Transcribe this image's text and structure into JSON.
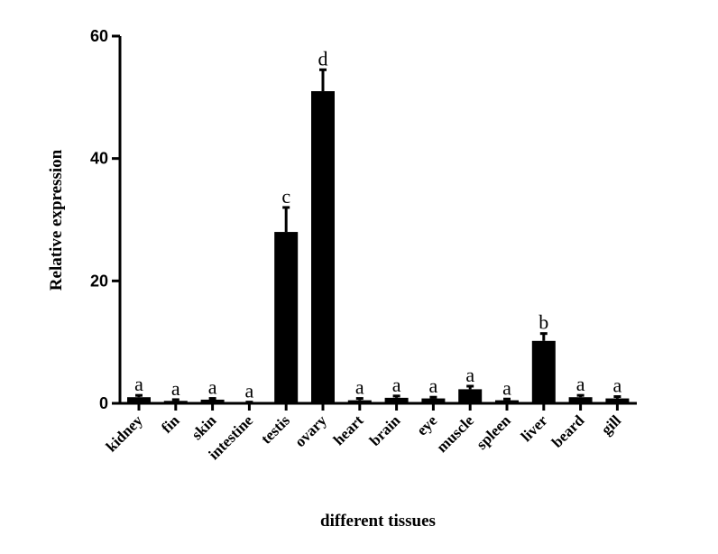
{
  "chart_data": {
    "type": "bar",
    "xlabel": "different tissues",
    "ylabel": "Relative expression",
    "ylim": [
      0,
      60
    ],
    "yticks": [
      "0",
      "20",
      "40",
      "60"
    ],
    "categories": [
      "kidney",
      "fin",
      "skin",
      "intestine",
      "testis",
      "ovary",
      "heart",
      "brain",
      "eye",
      "muscle",
      "spleen",
      "liver",
      "beard",
      "gill"
    ],
    "values": [
      1.0,
      0.4,
      0.6,
      0.1,
      28.0,
      51.0,
      0.5,
      0.9,
      0.8,
      2.3,
      0.5,
      10.2,
      1.0,
      0.8
    ],
    "errors": [
      0.3,
      0.2,
      0.2,
      0.1,
      4.0,
      3.5,
      0.3,
      0.3,
      0.2,
      0.5,
      0.2,
      1.2,
      0.3,
      0.3
    ],
    "significance": [
      "a",
      "a",
      "a",
      "a",
      "c",
      "d",
      "a",
      "a",
      "a",
      "a",
      "a",
      "b",
      "a",
      "a"
    ],
    "bar_color": "#000000"
  }
}
